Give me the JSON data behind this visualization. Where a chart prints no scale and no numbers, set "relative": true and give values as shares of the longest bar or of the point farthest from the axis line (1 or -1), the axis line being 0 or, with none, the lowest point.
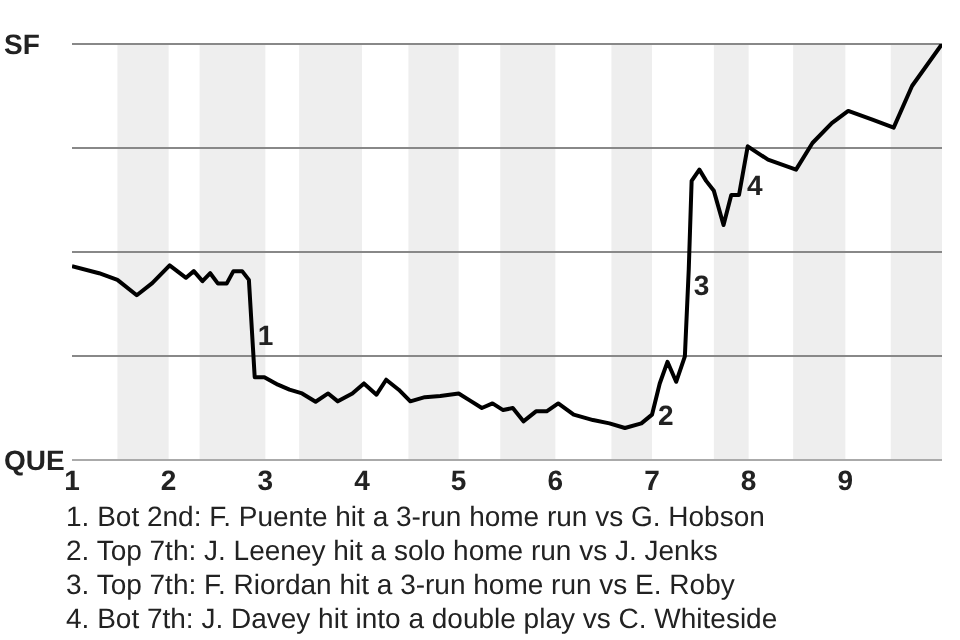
{
  "chart_data": {
    "type": "line",
    "relative": true,
    "x": [
      1.0,
      1.28,
      1.47,
      1.67,
      1.83,
      2.01,
      2.18,
      2.26,
      2.35,
      2.43,
      2.51,
      2.6,
      2.67,
      2.76,
      2.83,
      2.89,
      2.99,
      3.13,
      3.25,
      3.38,
      3.52,
      3.65,
      3.75,
      3.9,
      4.02,
      4.15,
      4.25,
      4.38,
      4.5,
      4.65,
      4.81,
      5.0,
      5.11,
      5.24,
      5.35,
      5.46,
      5.56,
      5.67,
      5.8,
      5.91,
      6.03,
      6.19,
      6.39,
      6.56,
      6.72,
      6.89,
      7.0,
      7.08,
      7.16,
      7.25,
      7.34,
      7.38,
      7.41,
      7.49,
      7.56,
      7.64,
      7.74,
      7.82,
      7.9,
      7.99,
      8.2,
      8.49,
      8.66,
      8.86,
      9.03,
      9.28,
      9.5,
      9.69,
      10.0
    ],
    "series": [
      {
        "color": "#000000",
        "values": [
          0.466,
          0.449,
          0.433,
          0.396,
          0.425,
          0.468,
          0.438,
          0.454,
          0.43,
          0.449,
          0.424,
          0.424,
          0.454,
          0.454,
          0.433,
          0.199,
          0.199,
          0.181,
          0.169,
          0.16,
          0.14,
          0.16,
          0.141,
          0.16,
          0.184,
          0.157,
          0.193,
          0.169,
          0.141,
          0.151,
          0.154,
          0.16,
          0.144,
          0.125,
          0.136,
          0.12,
          0.125,
          0.093,
          0.117,
          0.117,
          0.136,
          0.109,
          0.096,
          0.088,
          0.077,
          0.088,
          0.109,
          0.184,
          0.236,
          0.188,
          0.249,
          0.457,
          0.671,
          0.698,
          0.671,
          0.647,
          0.565,
          0.637,
          0.637,
          0.754,
          0.722,
          0.698,
          0.762,
          0.81,
          0.839,
          0.818,
          0.799,
          0.899,
          1.0
        ]
      }
    ],
    "xlim": [
      1,
      10
    ],
    "xticks": [
      1,
      2,
      3,
      4,
      5,
      6,
      7,
      8,
      9
    ],
    "grid": "y",
    "marker": "none",
    "line_style": "solid",
    "bands": [
      {
        "axis": "x",
        "from": 1.47,
        "to": 2,
        "color": "#eeeeee"
      },
      {
        "axis": "x",
        "from": 2.32,
        "to": 3,
        "color": "#eeeeee"
      },
      {
        "axis": "x",
        "from": 3.35,
        "to": 4,
        "color": "#eeeeee"
      },
      {
        "axis": "x",
        "from": 4.48,
        "to": 5,
        "color": "#eeeeee"
      },
      {
        "axis": "x",
        "from": 5.43,
        "to": 6,
        "color": "#eeeeee"
      },
      {
        "axis": "x",
        "from": 6.58,
        "to": 7,
        "color": "#eeeeee"
      },
      {
        "axis": "x",
        "from": 7.64,
        "to": 8,
        "color": "#eeeeee"
      },
      {
        "axis": "x",
        "from": 8.46,
        "to": 9,
        "color": "#eeeeee"
      },
      {
        "axis": "x",
        "from": 9.47,
        "to": 10,
        "color": "#eeeeee"
      }
    ],
    "annotations": [
      "SF",
      "QUE",
      {
        "text": "1",
        "x": 2.86,
        "y": 0.3
      },
      {
        "text": "2",
        "x": 7.0,
        "y": 0.109
      },
      {
        "text": "3",
        "x": 7.37,
        "y": 0.42
      },
      {
        "text": "4",
        "x": 7.92,
        "y": 0.66
      },
      "1. Bot 2nd: F. Puente hit a 3-run home run vs G. Hobson",
      "2. Top 7th: J. Leeney hit a solo home run vs J. Jenks",
      "3. Top 7th: F. Riordan hit a 3-run home run vs E. Roby",
      "4. Bot 7th: J. Davey hit into a double play vs C. Whiteside"
    ]
  }
}
